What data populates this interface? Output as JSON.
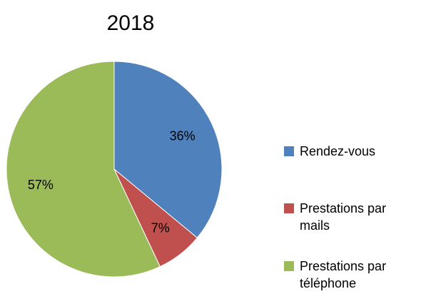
{
  "chart_data": {
    "type": "pie",
    "title": "2018",
    "categories": [
      "Rendez-vous",
      "Prestations par mails",
      "Prestations par téléphone"
    ],
    "values": [
      36,
      7,
      57
    ],
    "value_labels": [
      "36%",
      "7%",
      "57%"
    ],
    "colors": [
      "#4f81bd",
      "#c0504d",
      "#9bbb59"
    ],
    "legend": "right"
  }
}
